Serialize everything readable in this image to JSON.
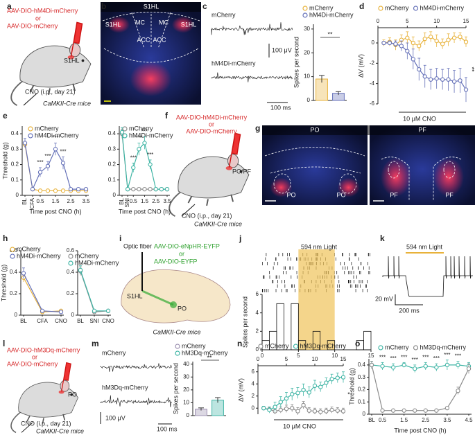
{
  "panels": {
    "a": {
      "label": "a",
      "texts": [
        "AAV-DIO-hM4Di-mCherry",
        "or",
        "AAV-DIO-mCherry",
        "S1HL",
        "CNO (i.p., day 21)",
        "CaMKII-Cre mice"
      ]
    },
    "b": {
      "label": "b",
      "texts": [
        "S1HL",
        "S1HL",
        "MC",
        "MC",
        "S1HL",
        "ACC",
        "ACC"
      ]
    },
    "c": {
      "label": "c",
      "texts": [
        "mCherry",
        "100 μV",
        "hM4Di-mCherry",
        "100 ms"
      ]
    },
    "d": {
      "label": "d",
      "texts": []
    },
    "e": {
      "label": "e",
      "texts": []
    },
    "f": {
      "label": "f",
      "texts": [
        "AAV-DIO-hM4Di-mCherry",
        "or",
        "AAV-DIO-mCherry",
        "PO/PF",
        "CNO (i.p., day 21)",
        "CaMKII-Cre mice"
      ]
    },
    "g": {
      "label": "g",
      "texts": [
        "PO",
        "PF",
        "PO",
        "PO",
        "PF",
        "PF"
      ]
    },
    "h": {
      "label": "h",
      "texts": []
    },
    "i": {
      "label": "i",
      "texts": [
        "Optic fiber",
        "AAV-DIO-eNpHR-EYFP",
        "or",
        "AAV-DIO-EYFP",
        "S1HL",
        "PO",
        "CaMKII-Cre mice"
      ]
    },
    "j": {
      "label": "j",
      "texts": []
    },
    "k": {
      "label": "k",
      "texts": [
        "594 nm Light",
        "20 mV",
        "200 ms"
      ]
    },
    "l": {
      "label": "l",
      "texts": [
        "AAV-DIO-hM3Dq-mCherry",
        "or",
        "AAV-DIO-mCherry",
        "PO",
        "CNO (i.p., day 21)",
        "CaMKII-Cre mice"
      ]
    },
    "m": {
      "label": "m",
      "texts": [
        "mCherry",
        "hM3Dq-mCherry",
        "100 μV",
        "100 ms"
      ]
    },
    "n": {
      "label": "n",
      "texts": []
    },
    "o": {
      "label": "o",
      "texts": []
    }
  },
  "chart_data": [
    {
      "type": "bar",
      "ylabel": "Spikes per second",
      "ylim": [
        0,
        32
      ],
      "yticks": [
        0,
        10,
        20,
        30
      ],
      "series": [
        {
          "name": "mCherry",
          "color": "#e8b23a",
          "values": [
            9
          ],
          "errors": [
            1.5
          ]
        },
        {
          "name": "hM4Di-mCherry",
          "color": "#6470b8",
          "values": [
            3
          ],
          "errors": [
            0.7
          ]
        }
      ],
      "annotations": [
        "**"
      ]
    },
    {
      "type": "line",
      "ylabel": "ΔV (mV)",
      "x": [
        1,
        2,
        3,
        4,
        5,
        6,
        7,
        8,
        9,
        10,
        11,
        12,
        13,
        14,
        15
      ],
      "xlim": [
        0,
        15
      ],
      "xticks": [
        0,
        5,
        10,
        15
      ],
      "ylim": [
        -6,
        1.5
      ],
      "yticks": [
        -6,
        -4,
        -2,
        0
      ],
      "series": [
        {
          "name": "mCherry",
          "color": "#e8b23a",
          "values": [
            0,
            0.1,
            -0.2,
            0.3,
            0.5,
            0,
            -0.3,
            0.4,
            0.6,
            0.2,
            -0.1,
            0.3,
            0.5,
            0.6,
            0.1
          ],
          "errors": [
            0.3,
            0.4,
            0.5,
            0.5,
            0.6,
            0.6,
            0.5,
            0.6,
            0.5,
            0.6,
            0.5,
            0.6,
            0.5,
            0.4,
            0.5
          ]
        },
        {
          "name": "hM4Di-mCherry",
          "color": "#6470b8",
          "values": [
            0,
            0,
            -0.1,
            -0.3,
            -0.8,
            -1.6,
            -2.6,
            -3.3,
            -3.6,
            -3.5,
            -3.6,
            -3.6,
            -3.8,
            -3.7,
            -4.6
          ],
          "errors": [
            0.1,
            0.2,
            0.3,
            0.5,
            0.8,
            1.0,
            1.1,
            1.1,
            1.0,
            1.0,
            1.0,
            1.1,
            1.1,
            1.2,
            1.2
          ]
        }
      ],
      "annotations": [
        "10 μM CNO",
        "**"
      ]
    },
    {
      "type": "line",
      "ylabel": "Threshold (g)",
      "xlabel": "Time post CNO (h)",
      "categories": [
        "BL",
        "CFA",
        "0.5",
        null,
        "1.5",
        null,
        "2.5",
        null,
        "3.5"
      ],
      "ylim": [
        0,
        0.45
      ],
      "yticks": [
        0,
        0.1,
        0.2,
        0.3,
        0.4
      ],
      "series": [
        {
          "name": "mCherry",
          "color": "#e8b23a",
          "values": [
            0.33,
            0.04,
            0.03,
            0.03,
            0.03,
            0.03,
            0.03,
            0.03,
            0.03
          ],
          "errors": [
            0.02,
            0.01,
            0.01,
            0.01,
            0.01,
            0.01,
            0.01,
            0.01,
            0.01
          ]
        },
        {
          "name": "hM4Di-mCherry",
          "color": "#6470b8",
          "values": [
            0.34,
            0.04,
            0.15,
            0.19,
            0.3,
            0.21,
            0.04,
            0.04,
            0.04
          ],
          "errors": [
            0.03,
            0.01,
            0.03,
            0.03,
            0.04,
            0.04,
            0.01,
            0.01,
            0.01
          ]
        }
      ],
      "annotations": [
        "***",
        "***",
        "***",
        "***"
      ]
    },
    {
      "type": "line",
      "xlabel": "Time post CNO (h)",
      "categories": [
        "BL",
        "SNI",
        "0.5",
        null,
        "1.5",
        null,
        "2.5",
        null,
        "3.5"
      ],
      "ylim": [
        0,
        0.45
      ],
      "yticks": [
        0,
        0.1,
        0.2,
        0.3,
        0.4
      ],
      "series": [
        {
          "name": "mCherry",
          "color": "#8c8c8c",
          "values": [
            0.4,
            0.04,
            0.04,
            0.04,
            0.04,
            0.04,
            0.04,
            0.04,
            0.04
          ],
          "errors": [
            0.03,
            0.01,
            0.01,
            0.01,
            0.01,
            0.01,
            0.01,
            0.01,
            0.01
          ]
        },
        {
          "name": "hM4Di-mCherry",
          "color": "#3fb5a5",
          "values": [
            0.41,
            0.04,
            0.18,
            0.3,
            0.34,
            0.2,
            0.04,
            0.04,
            0.04
          ],
          "errors": [
            0.03,
            0.01,
            0.03,
            0.04,
            0.04,
            0.03,
            0.01,
            0.01,
            0.01
          ]
        }
      ],
      "annotations": [
        "***",
        "***",
        "***",
        "***"
      ]
    },
    {
      "type": "line",
      "ylabel": "Threshold (g)",
      "categories": [
        "BL",
        "CFA",
        "CNO"
      ],
      "ylim": [
        0,
        0.6
      ],
      "yticks": [
        0,
        0.2,
        0.4,
        0.6
      ],
      "series": [
        {
          "name": "mCherry",
          "color": "#e8b23a",
          "values": [
            0.35,
            0.03,
            0.04
          ],
          "errors": [
            0.04,
            0.01,
            0.01
          ]
        },
        {
          "name": "hM4Di-mCherry",
          "color": "#6470b8",
          "values": [
            0.39,
            0.04,
            0.03
          ],
          "errors": [
            0.05,
            0.01,
            0.01
          ]
        }
      ]
    },
    {
      "type": "line",
      "categories": [
        "BL",
        "SNI",
        "CNO"
      ],
      "ylim": [
        0,
        0.6
      ],
      "yticks": [
        0,
        0.2,
        0.4,
        0.6
      ],
      "series": [
        {
          "name": "mCherry",
          "color": "#8c8c8c",
          "values": [
            0.41,
            0.03,
            0.04
          ],
          "errors": [
            0.04,
            0.01,
            0.01
          ]
        },
        {
          "name": "hM4Di-mCherry",
          "color": "#3fb5a5",
          "values": [
            0.42,
            0.04,
            0.04
          ],
          "errors": [
            0.04,
            0.01,
            0.01
          ]
        }
      ]
    },
    {
      "type": "histogram",
      "title": "594 nm Light",
      "ylabel": "Spikes per second",
      "bins": [
        0,
        1,
        2,
        3,
        4,
        5,
        6,
        7,
        8,
        9,
        10,
        11,
        12,
        13,
        14,
        15
      ],
      "counts": [
        1,
        2,
        5,
        0,
        5,
        1,
        0,
        2,
        0,
        1,
        0,
        0,
        0,
        1,
        2
      ],
      "highlight": [
        5,
        10
      ],
      "color": "#f0c35a",
      "xlim": [
        0,
        15
      ],
      "xticks": [
        0,
        5,
        10,
        15
      ],
      "ylim": [
        0,
        6
      ],
      "yticks": [
        0,
        2,
        4,
        6
      ]
    },
    {
      "type": "bar",
      "ylabel": "Spikes per second",
      "ylim": [
        0,
        42
      ],
      "yticks": [
        0,
        10,
        20,
        30,
        40
      ],
      "series": [
        {
          "name": "mCherry",
          "color": "#9b8fb0",
          "values": [
            5
          ],
          "errors": [
            1
          ]
        },
        {
          "name": "hM3Dq-mCherry",
          "color": "#3fb5a5",
          "values": [
            12
          ],
          "errors": [
            2
          ]
        }
      ],
      "annotations": [
        "**"
      ]
    },
    {
      "type": "line",
      "ylabel": "ΔV (mV)",
      "x": [
        1,
        2,
        3,
        4,
        5,
        6,
        7,
        8,
        9,
        10,
        11,
        12,
        13,
        14,
        15
      ],
      "xlim": [
        0,
        15
      ],
      "xticks": [
        0,
        5,
        10,
        15
      ],
      "ylim": [
        -1,
        7
      ],
      "yticks": [
        0,
        2,
        4,
        6
      ],
      "series": [
        {
          "name": "mCherry",
          "color": "#8c8c8c",
          "values": [
            0,
            -0.2,
            -0.5,
            -0.3,
            -0.1,
            0,
            -0.5,
            0.5,
            -0.4,
            -0.5,
            -0.6,
            -0.5,
            -0.3,
            -0.4,
            -0.5
          ],
          "errors": [
            0.3,
            0.4,
            0.5,
            0.5,
            0.6,
            0.6,
            0.6,
            0.6,
            0.5,
            0.5,
            0.5,
            0.5,
            0.5,
            0.5,
            0.5
          ]
        },
        {
          "name": "hM3Dq-mCherry",
          "color": "#3fb5a5",
          "values": [
            0,
            -0.3,
            0.2,
            1.0,
            1.6,
            2.3,
            2.5,
            3.0,
            2.6,
            3.7,
            3.5,
            4.2,
            4.8,
            5.0,
            5.1
          ],
          "errors": [
            0.3,
            0.5,
            0.8,
            0.9,
            1.0,
            1.0,
            0.9,
            1.0,
            0.9,
            0.9,
            0.8,
            0.8,
            0.8,
            0.8,
            0.9
          ]
        }
      ],
      "annotations": [
        "10 μM CNO",
        "*"
      ]
    },
    {
      "type": "line",
      "ylabel": "Threshold (g)",
      "xlabel": "Time post CNO (h)",
      "categories": [
        "BL",
        "0.5",
        null,
        "1.5",
        null,
        "2.5",
        null,
        "3.5",
        null,
        "4.5"
      ],
      "ylim": [
        0,
        0.45
      ],
      "yticks": [
        0,
        0.1,
        0.2,
        0.3,
        0.4
      ],
      "series": [
        {
          "name": "mCherry",
          "color": "#3fb5a5",
          "values": [
            0.4,
            0.39,
            0.38,
            0.4,
            0.37,
            0.39,
            0.38,
            0.4,
            0.4,
            0.39
          ],
          "errors": [
            0.03,
            0.03,
            0.03,
            0.02,
            0.03,
            0.03,
            0.03,
            0.04,
            0.03,
            0.03
          ]
        },
        {
          "name": "hM3Dq-mCherry",
          "color": "#8c8c8c",
          "values": [
            0.4,
            0.03,
            0.03,
            0.03,
            0.03,
            0.03,
            0.03,
            0.05,
            0.19,
            0.37
          ],
          "errors": [
            0.03,
            0.01,
            0.01,
            0.01,
            0.01,
            0.01,
            0.01,
            0.01,
            0.03,
            0.04
          ]
        }
      ],
      "annotations": [
        "***",
        "***",
        "***",
        "***",
        "***",
        "***",
        "***",
        "***"
      ]
    }
  ]
}
